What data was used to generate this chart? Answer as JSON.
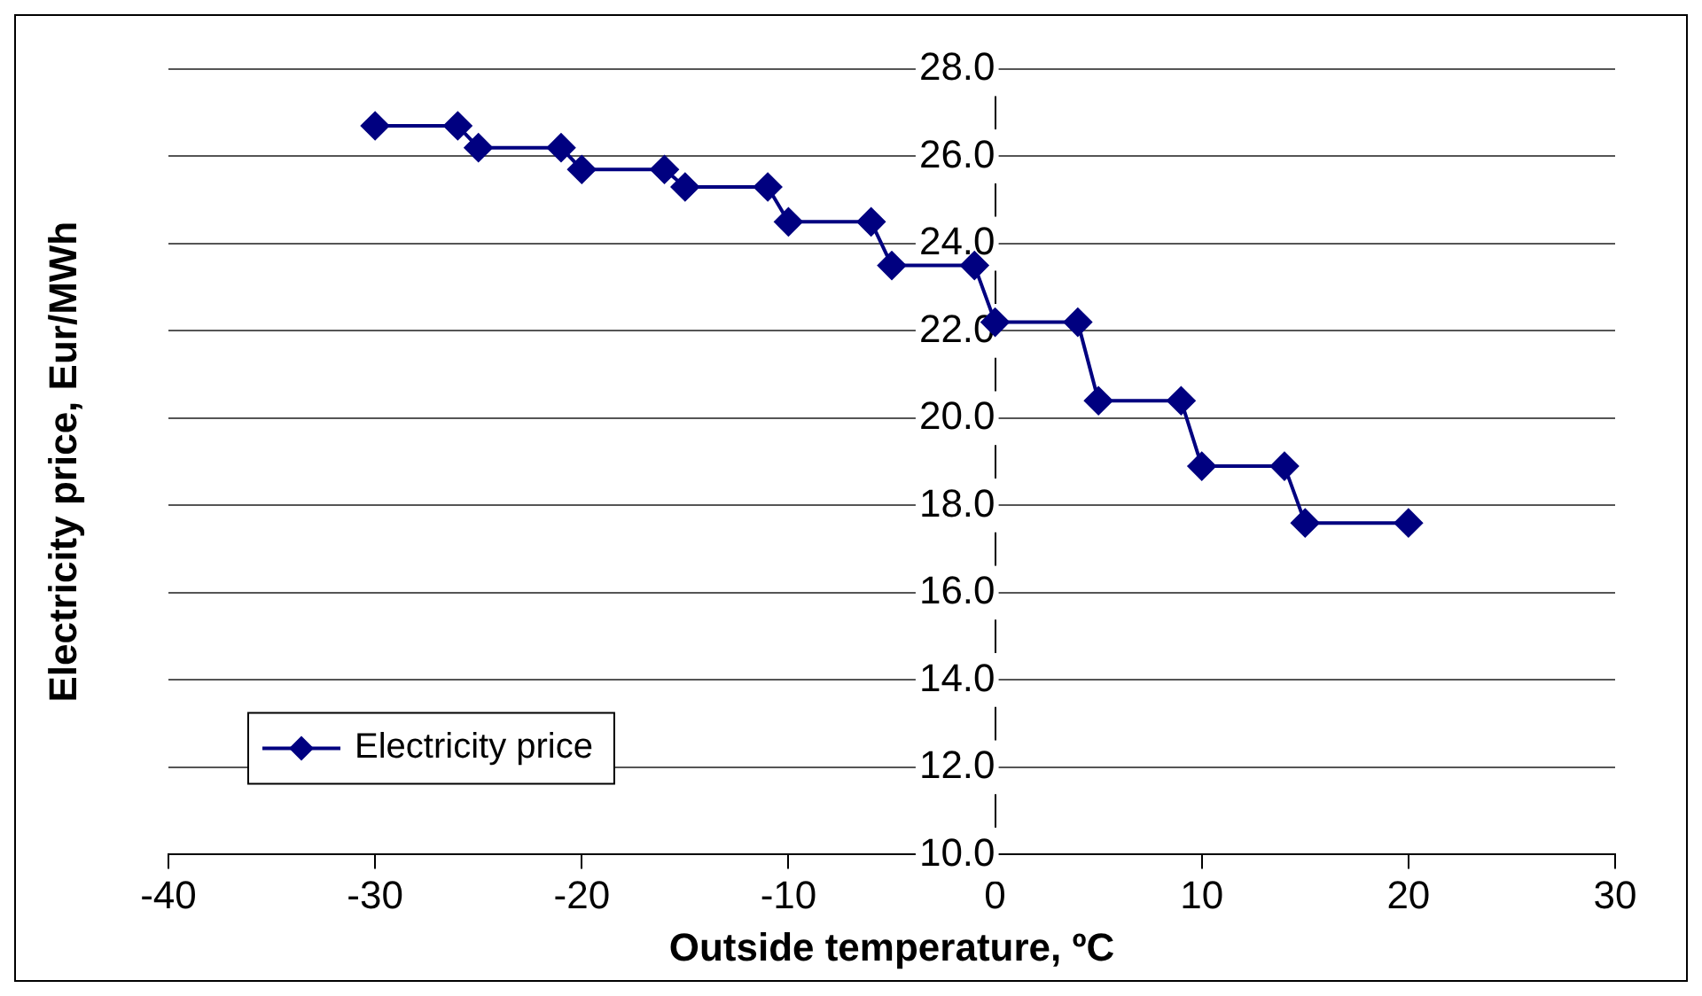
{
  "chart_data": {
    "type": "line",
    "xlabel": "Outside temperature, ºC",
    "ylabel": "Electricity price, Eur/MWh",
    "x": [
      -30,
      -26,
      -25,
      -21,
      -20,
      -16,
      -15,
      -11,
      -10,
      -6,
      -5,
      -1,
      0,
      4,
      5,
      9,
      10,
      14,
      15,
      20
    ],
    "series": [
      {
        "name": "Electricity price",
        "color": "#000080",
        "values": [
          26.7,
          26.7,
          26.2,
          26.2,
          25.7,
          25.7,
          25.3,
          25.3,
          24.5,
          24.5,
          23.5,
          23.5,
          22.2,
          22.2,
          20.4,
          20.4,
          18.9,
          18.9,
          17.6,
          17.6
        ]
      }
    ],
    "xlim": [
      -40,
      30
    ],
    "xticks": [
      -40,
      -30,
      -20,
      -10,
      0,
      10,
      20,
      30
    ],
    "ylim": [
      10,
      28
    ],
    "yticks": [
      {
        "value": 10,
        "label": "10.0"
      },
      {
        "value": 12,
        "label": "12.0"
      },
      {
        "value": 14,
        "label": "14.0"
      },
      {
        "value": 16,
        "label": "16.0"
      },
      {
        "value": 18,
        "label": "18.0"
      },
      {
        "value": 20,
        "label": "20.0"
      },
      {
        "value": 22,
        "label": "22.0"
      },
      {
        "value": 24,
        "label": "24.0"
      },
      {
        "value": 26,
        "label": "26.0"
      },
      {
        "value": 28,
        "label": "28.0"
      }
    ],
    "grid": "y",
    "legend": "bottom left",
    "marker": "diamond",
    "line_style": "solid"
  }
}
